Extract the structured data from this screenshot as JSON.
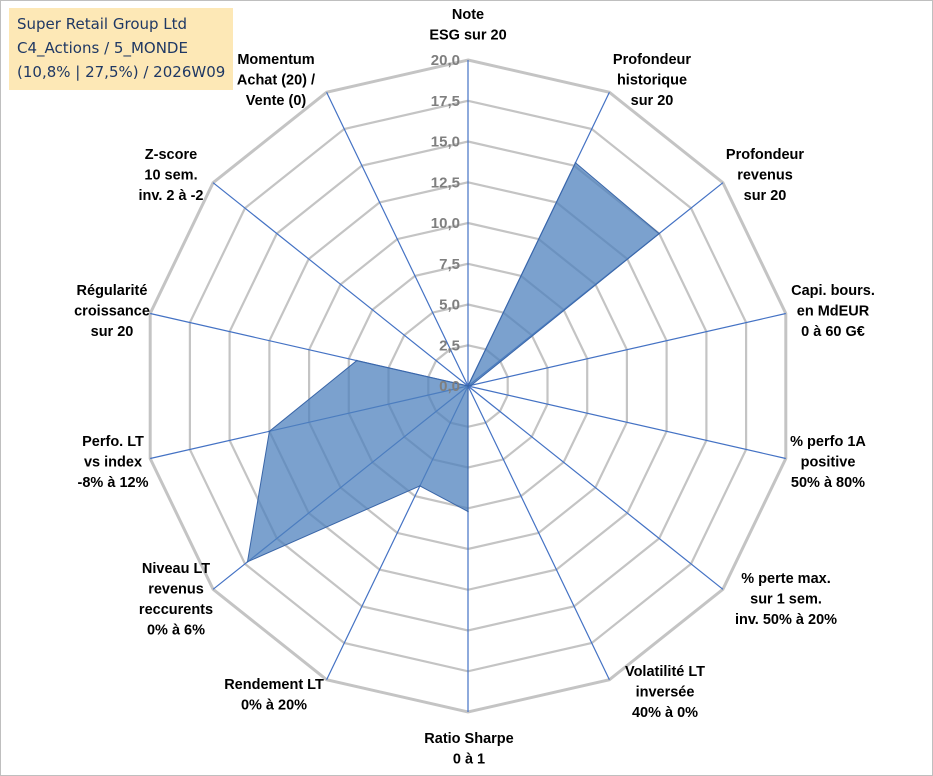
{
  "info_box": {
    "line1": "Super Retail Group Ltd",
    "line2": "C4_Actions / 5_MONDE",
    "line3": "(10,8% | 27,5%) / 2026W09"
  },
  "chart_data": {
    "type": "radar",
    "title": "",
    "rmin": 0,
    "rmax": 20,
    "tick_values": [
      0,
      2.5,
      5,
      7.5,
      10,
      12.5,
      15,
      17.5,
      20
    ],
    "tick_labels": [
      "0,0",
      "2,5",
      "5,0",
      "7,5",
      "10,0",
      "12,5",
      "15,0",
      "17,5",
      "20,0"
    ],
    "axes": [
      {
        "label": [
          "Note",
          "ESG sur 20"
        ]
      },
      {
        "label": [
          "Profondeur",
          "historique",
          "sur 20"
        ]
      },
      {
        "label": [
          "Profondeur",
          "revenus",
          "sur 20"
        ]
      },
      {
        "label": [
          "Capi. bours.",
          "en MdEUR",
          "0 à 60 G€"
        ]
      },
      {
        "label": [
          "% perfo 1A",
          "positive",
          "50% à 80%"
        ]
      },
      {
        "label": [
          "% perte max.",
          "sur 1 sem.",
          "inv. 50% à 20%"
        ]
      },
      {
        "label": [
          "Volatilité LT",
          "inversée",
          "40% à 0%"
        ]
      },
      {
        "label": [
          "Ratio Sharpe",
          "0 à 1"
        ]
      },
      {
        "label": [
          "Rendement LT",
          "0% à 20%"
        ]
      },
      {
        "label": [
          "Niveau LT",
          "revenus",
          "reccurents",
          "0% à 6%"
        ]
      },
      {
        "label": [
          "Perfo. LT",
          "vs index",
          "-8% à 12%"
        ]
      },
      {
        "label": [
          "Régularité",
          "croissance",
          "sur 20"
        ]
      },
      {
        "label": [
          "Z-score",
          "10 sem.",
          "inv. 2 à -2"
        ]
      },
      {
        "label": [
          "Momentum",
          "Achat (20) /",
          "Vente (0)"
        ]
      }
    ],
    "series": [
      {
        "name": "Super Retail Group Ltd",
        "color": "#4f81bd",
        "values": [
          0,
          15.2,
          15.0,
          0.2,
          0,
          0,
          0,
          7.7,
          6.8,
          17.3,
          12.5,
          7.0,
          0,
          0
        ]
      }
    ]
  }
}
